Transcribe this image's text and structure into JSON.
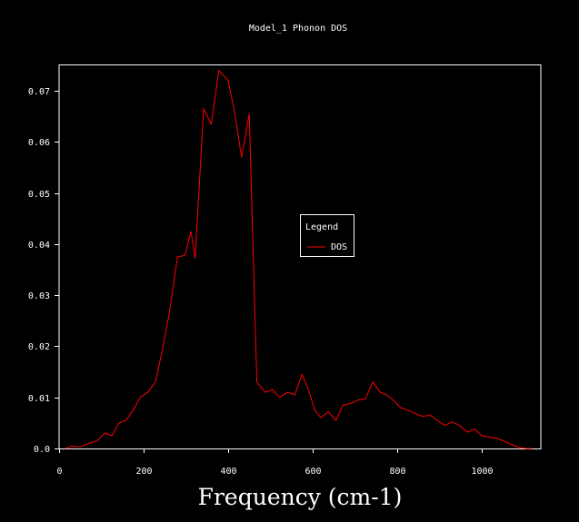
{
  "chart_data": {
    "type": "line",
    "title": "Model_1 Phonon DOS",
    "xlabel": "Frequency (cm-1)",
    "ylabel": "",
    "xlim": [
      0,
      1140
    ],
    "ylim": [
      0,
      0.075
    ],
    "xticks": [
      0,
      200,
      400,
      600,
      800,
      1000
    ],
    "yticks": [
      0.0,
      0.01,
      0.02,
      0.03,
      0.04,
      0.05,
      0.06,
      0.07
    ],
    "ytick_labels": [
      "0.0",
      "0.01",
      "0.02",
      "0.03",
      "0.04",
      "0.05",
      "0.06",
      "0.07"
    ],
    "xtick_labels": [
      "0",
      "200",
      "400",
      "600",
      "800",
      "1000"
    ],
    "grid": false,
    "legend": {
      "title": "Legend",
      "placement": "center-right"
    },
    "series": [
      {
        "name": "DOS",
        "color": "#ff0000",
        "x": [
          15,
          30,
          50,
          70,
          90,
          108,
          125,
          142,
          158,
          175,
          192,
          210,
          228,
          245,
          262,
          280,
          298,
          312,
          322,
          342,
          360,
          378,
          400,
          415,
          432,
          450,
          468,
          488,
          505,
          522,
          540,
          558,
          575,
          590,
          605,
          620,
          637,
          655,
          672,
          690,
          708,
          725,
          742,
          760,
          775,
          790,
          808,
          825,
          843,
          860,
          878,
          895,
          913,
          930,
          948,
          965,
          983,
          1000,
          1018,
          1035,
          1052,
          1070,
          1088,
          1105,
          1120
        ],
        "y": [
          0.0,
          0.0005,
          0.0003,
          0.001,
          0.0015,
          0.003,
          0.0025,
          0.005,
          0.0055,
          0.0075,
          0.01,
          0.011,
          0.013,
          0.0195,
          0.027,
          0.0375,
          0.0378,
          0.0425,
          0.0372,
          0.0665,
          0.0635,
          0.074,
          0.072,
          0.066,
          0.057,
          0.0655,
          0.013,
          0.011,
          0.0115,
          0.01,
          0.011,
          0.0105,
          0.0145,
          0.0115,
          0.0075,
          0.006,
          0.0072,
          0.0055,
          0.0085,
          0.0088,
          0.0095,
          0.0097,
          0.013,
          0.011,
          0.0105,
          0.0095,
          0.008,
          0.0075,
          0.0068,
          0.0063,
          0.0065,
          0.0055,
          0.0045,
          0.0052,
          0.0045,
          0.0032,
          0.0038,
          0.0025,
          0.0022,
          0.002,
          0.0015,
          0.0008,
          0.0002,
          0.0,
          0.0
        ]
      }
    ]
  }
}
